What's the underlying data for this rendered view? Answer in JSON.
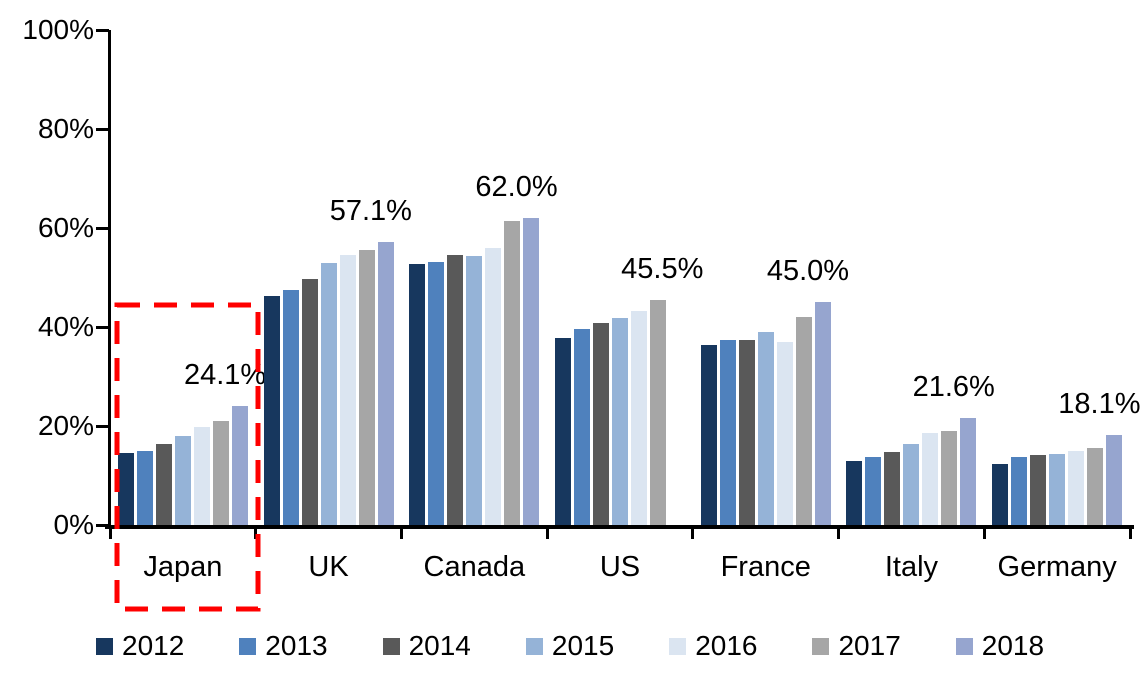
{
  "chart_data": {
    "type": "bar",
    "title": "",
    "xlabel": "",
    "ylabel": "",
    "ylim": [
      0,
      100
    ],
    "grid": false,
    "legend_position": "bottom",
    "y_ticks": [
      "0%",
      "20%",
      "40%",
      "60%",
      "80%",
      "100%"
    ],
    "categories": [
      "Japan",
      "UK",
      "Canada",
      "US",
      "France",
      "Italy",
      "Germany"
    ],
    "series": [
      {
        "name": "2012",
        "color": "#17375E",
        "values": [
          14.6,
          46.2,
          52.7,
          37.8,
          36.3,
          12.9,
          12.3
        ]
      },
      {
        "name": "2013",
        "color": "#4F81BD",
        "values": [
          14.9,
          47.5,
          53.1,
          39.6,
          37.4,
          13.7,
          13.8
        ]
      },
      {
        "name": "2014",
        "color": "#595959",
        "values": [
          16.4,
          49.7,
          54.5,
          40.8,
          37.3,
          14.7,
          14.1
        ]
      },
      {
        "name": "2015",
        "color": "#95B3D7",
        "values": [
          17.9,
          53.0,
          54.3,
          41.8,
          39.0,
          16.4,
          14.4
        ]
      },
      {
        "name": "2016",
        "color": "#DBE5F1",
        "values": [
          19.9,
          54.6,
          56.0,
          43.2,
          37.0,
          18.6,
          15.0
        ]
      },
      {
        "name": "2017",
        "color": "#A6A6A6",
        "values": [
          21.0,
          55.6,
          61.4,
          45.5,
          42.1,
          18.9,
          15.6
        ]
      },
      {
        "name": "2018",
        "color": "#96A5CF",
        "values": [
          24.1,
          57.1,
          62.0,
          null,
          45.0,
          21.6,
          18.1
        ]
      }
    ],
    "data_labels": [
      "24.1%",
      "57.1%",
      "62.0%",
      "45.5%",
      "45.0%",
      "21.6%",
      "18.1%"
    ],
    "highlight": {
      "category": "Japan",
      "style": "dashed-rectangle",
      "color": "#FF0000"
    },
    "axis_color": "#000000"
  }
}
